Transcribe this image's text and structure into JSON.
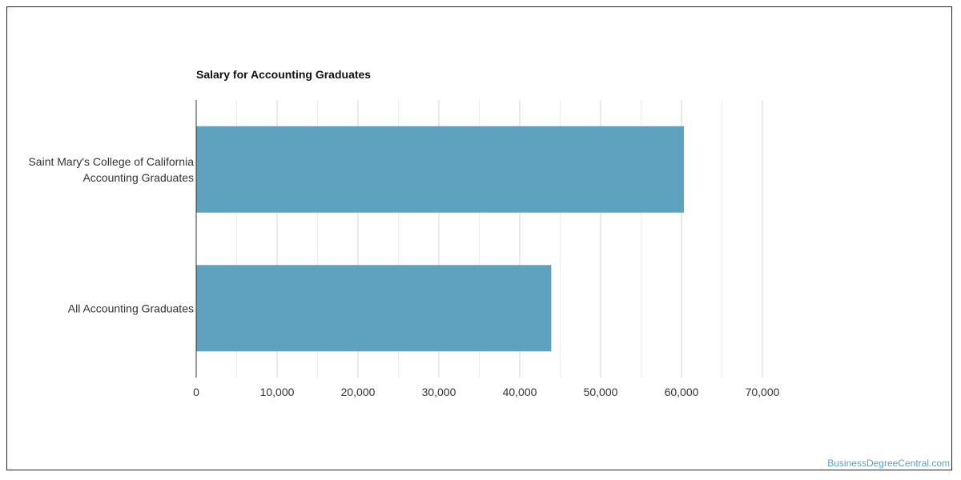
{
  "chart_data": {
    "type": "bar",
    "orientation": "horizontal",
    "title": "Salary for Accounting Graduates",
    "categories": [
      [
        "Saint Mary's College of California",
        "Accounting Graduates"
      ],
      [
        "All Accounting Graduates"
      ]
    ],
    "values": [
      60300,
      43900
    ],
    "xlim": [
      0,
      70000
    ],
    "xticks": [
      0,
      10000,
      20000,
      30000,
      40000,
      50000,
      60000,
      70000
    ],
    "xtick_labels": [
      "0",
      "10,000",
      "20,000",
      "30,000",
      "40,000",
      "50,000",
      "60,000",
      "70,000"
    ],
    "grid": true,
    "bar_color": "#5ea2bf"
  },
  "watermark": "BusinessDegreeCentral.com"
}
